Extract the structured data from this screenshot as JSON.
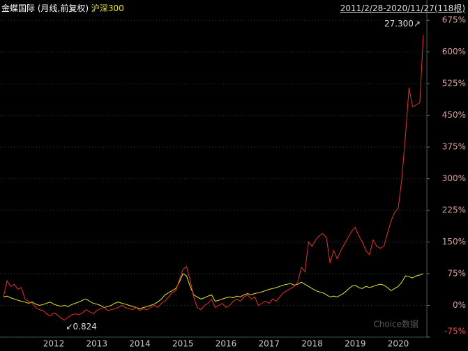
{
  "chart_data": {
    "type": "line",
    "subtitle": "(月线,前复权)",
    "date_range": "2011/2/28-2020/11/27(118根)",
    "watermark": "Choice数据",
    "annotations": [
      {
        "text": "27.300↗"
      },
      {
        "text": "↙0.824"
      }
    ],
    "categories": [
      null,
      null,
      null,
      null,
      null,
      null,
      null,
      null,
      null,
      null,
      null,
      null,
      null,
      null,
      "2012",
      null,
      null,
      null,
      null,
      null,
      null,
      null,
      null,
      null,
      null,
      null,
      "2013",
      null,
      null,
      null,
      null,
      null,
      null,
      null,
      null,
      null,
      null,
      null,
      "2014",
      null,
      null,
      null,
      null,
      null,
      null,
      null,
      null,
      null,
      null,
      null,
      "2015",
      null,
      null,
      null,
      null,
      null,
      null,
      null,
      null,
      null,
      null,
      null,
      "2016",
      null,
      null,
      null,
      null,
      null,
      null,
      null,
      null,
      null,
      null,
      null,
      "2017",
      null,
      null,
      null,
      null,
      null,
      null,
      null,
      null,
      null,
      null,
      null,
      "2018",
      null,
      null,
      null,
      null,
      null,
      null,
      null,
      null,
      null,
      null,
      null,
      "2019",
      null,
      null,
      null,
      null,
      null,
      null,
      null,
      null,
      null,
      null,
      null,
      "2020",
      null,
      null,
      null,
      null,
      null,
      null,
      null
    ],
    "series": [
      {
        "name": "金蝶国际",
        "color": "#e8312b",
        "legend_color": "#ffffff",
        "values": [
          20,
          58,
          45,
          50,
          38,
          42,
          15,
          10,
          5,
          -5,
          -10,
          -12,
          -20,
          -25,
          -18,
          -22,
          -30,
          -35,
          -28,
          -22,
          -20,
          -22,
          -18,
          -10,
          -15,
          -20,
          -12,
          -8,
          -5,
          -12,
          -10,
          -8,
          -5,
          0,
          -5,
          -8,
          -10,
          -5,
          -12,
          -8,
          -10,
          -5,
          0,
          -5,
          5,
          10,
          20,
          30,
          35,
          60,
          85,
          92,
          60,
          20,
          -5,
          -10,
          0,
          5,
          15,
          -5,
          0,
          5,
          -5,
          0,
          10,
          15,
          10,
          20,
          25,
          15,
          20,
          0,
          5,
          10,
          5,
          15,
          10,
          20,
          30,
          35,
          40,
          45,
          55,
          90,
          80,
          150,
          140,
          155,
          165,
          170,
          160,
          100,
          130,
          110,
          130,
          145,
          160,
          175,
          185,
          165,
          150,
          130,
          120,
          155,
          140,
          135,
          140,
          170,
          200,
          220,
          230,
          300,
          400,
          515,
          470,
          475,
          480,
          640
        ]
      },
      {
        "name": "沪深300",
        "color": "#e6e62e",
        "legend_color": "#e6e62e",
        "values": [
          20,
          22,
          18,
          15,
          12,
          10,
          8,
          5,
          8,
          3,
          0,
          2,
          5,
          8,
          3,
          0,
          -2,
          0,
          -3,
          2,
          5,
          8,
          12,
          15,
          10,
          5,
          3,
          0,
          -5,
          -3,
          0,
          5,
          8,
          5,
          3,
          0,
          -3,
          -5,
          -8,
          -5,
          -3,
          0,
          3,
          8,
          15,
          25,
          30,
          35,
          40,
          55,
          75,
          70,
          45,
          25,
          20,
          15,
          18,
          22,
          25,
          10,
          12,
          15,
          18,
          20,
          18,
          22,
          20,
          25,
          28,
          25,
          28,
          30,
          32,
          35,
          38,
          40,
          42,
          45,
          48,
          50,
          52,
          48,
          50,
          55,
          50,
          45,
          40,
          35,
          32,
          30,
          25,
          20,
          22,
          20,
          25,
          30,
          38,
          45,
          48,
          42,
          40,
          45,
          42,
          45,
          48,
          50,
          48,
          42,
          35,
          40,
          45,
          55,
          70,
          68,
          65,
          70,
          72,
          75
        ]
      }
    ],
    "ylim": [
      -75,
      700
    ],
    "yticks": [
      {
        "value": -75,
        "label": "-75%"
      },
      {
        "value": 0,
        "label": "0%"
      },
      {
        "value": 75,
        "label": "75%"
      },
      {
        "value": 150,
        "label": "150%"
      },
      {
        "value": 225,
        "label": "225%"
      },
      {
        "value": 300,
        "label": "300%"
      },
      {
        "value": 375,
        "label": "375%"
      },
      {
        "value": 450,
        "label": "450%"
      },
      {
        "value": 525,
        "label": "525%"
      },
      {
        "value": 600,
        "label": "600%"
      },
      {
        "value": 675,
        "label": "675%"
      }
    ],
    "grid": true
  }
}
